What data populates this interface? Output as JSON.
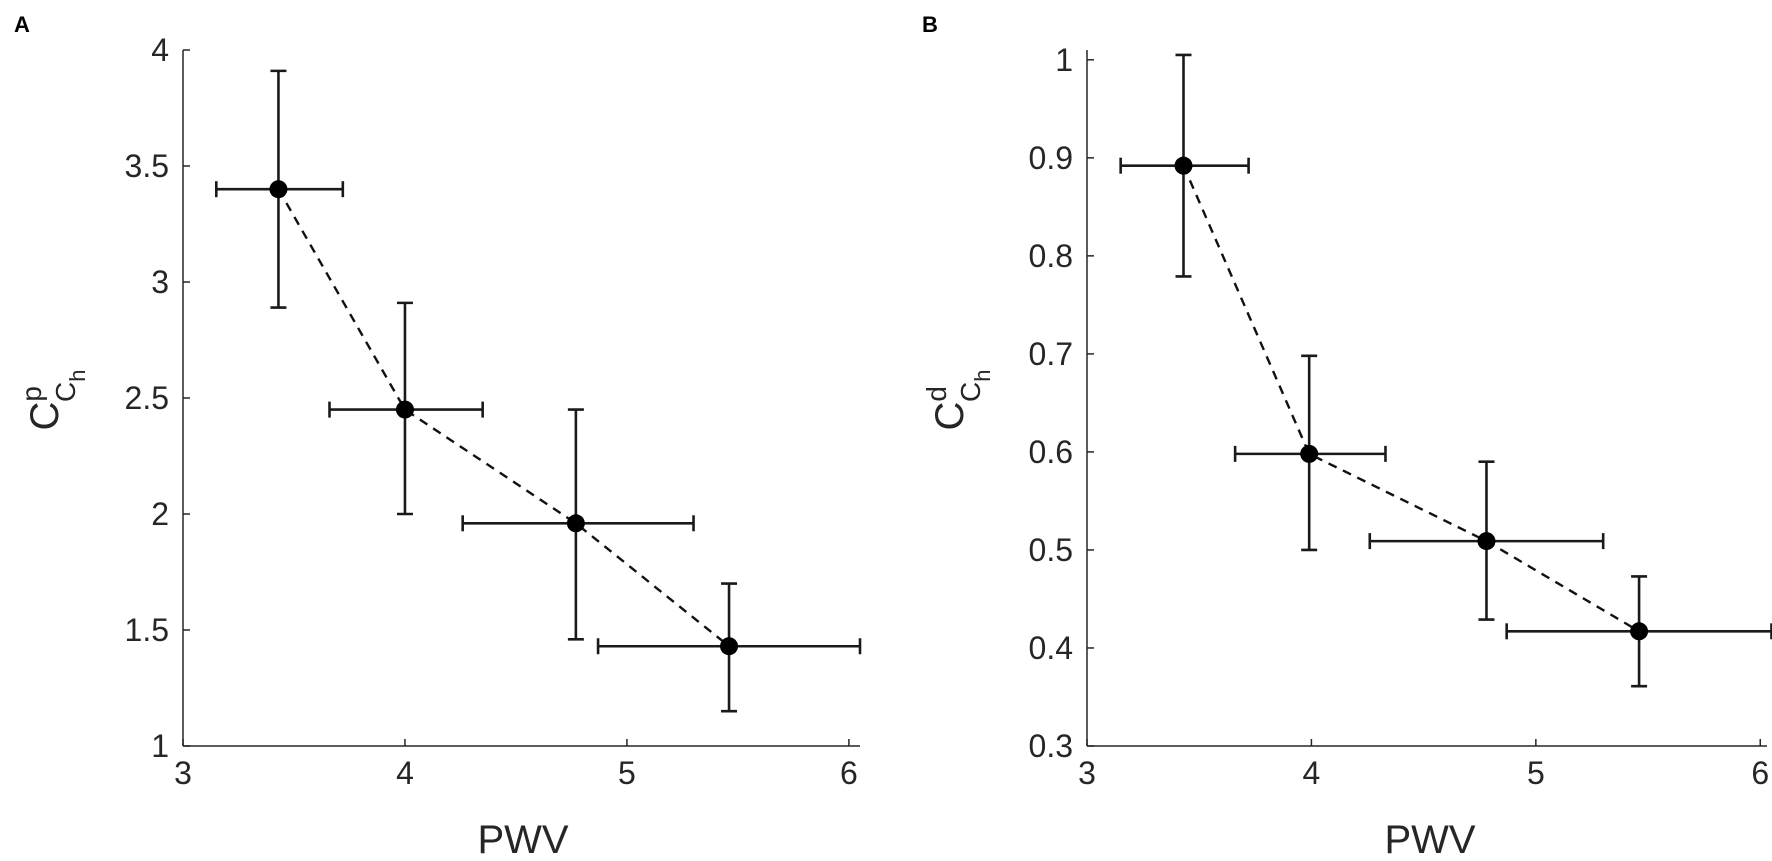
{
  "chart_data": [
    {
      "type": "scatter",
      "panel_label": "A",
      "xlabel": "PWV",
      "ylabel": {
        "base": "C",
        "sup": "p",
        "sub": "C",
        "subsub": "h"
      },
      "xlim": [
        3,
        6.05
      ],
      "ylim": [
        1,
        4
      ],
      "xticks": [
        3,
        4,
        5,
        6
      ],
      "xtick_labels": [
        "3",
        "4",
        "5",
        "6"
      ],
      "yticks": [
        1,
        1.5,
        2,
        2.5,
        3,
        3.5,
        4
      ],
      "ytick_labels": [
        "1",
        "1.5",
        "2",
        "2.5",
        "3",
        "3.5",
        "4"
      ],
      "grid": false,
      "fit_line": "dashed",
      "points": [
        {
          "x": 3.43,
          "y": 3.4,
          "x_err_low": 3.15,
          "x_err_high": 3.72,
          "y_err_low": 2.89,
          "y_err_high": 3.91
        },
        {
          "x": 4.0,
          "y": 2.45,
          "x_err_low": 3.66,
          "x_err_high": 4.35,
          "y_err_low": 2.0,
          "y_err_high": 2.91
        },
        {
          "x": 4.77,
          "y": 1.96,
          "x_err_low": 4.26,
          "x_err_high": 5.3,
          "y_err_low": 1.46,
          "y_err_high": 2.45
        },
        {
          "x": 5.46,
          "y": 1.43,
          "x_err_low": 4.87,
          "x_err_high": 6.05,
          "y_err_low": 1.15,
          "y_err_high": 1.7
        }
      ]
    },
    {
      "type": "scatter",
      "panel_label": "B",
      "xlabel": "PWV",
      "ylabel": {
        "base": "C",
        "sup": "d",
        "sub": "C",
        "subsub": "h"
      },
      "xlim": [
        3,
        6.03
      ],
      "ylim": [
        0.3,
        1.01
      ],
      "xticks": [
        3,
        4,
        5,
        6
      ],
      "xtick_labels": [
        "3",
        "4",
        "5",
        "6"
      ],
      "yticks": [
        0.3,
        0.4,
        0.5,
        0.6,
        0.7,
        0.8,
        0.9,
        1
      ],
      "ytick_labels": [
        "0.3",
        "0.4",
        "0.5",
        "0.6",
        "0.7",
        "0.8",
        "0.9",
        "1"
      ],
      "grid": false,
      "fit_line": "dashed",
      "points": [
        {
          "x": 3.43,
          "y": 0.892,
          "x_err_low": 3.15,
          "x_err_high": 3.72,
          "y_err_low": 0.779,
          "y_err_high": 1.005
        },
        {
          "x": 3.99,
          "y": 0.598,
          "x_err_low": 3.66,
          "x_err_high": 4.33,
          "y_err_low": 0.5,
          "y_err_high": 0.698
        },
        {
          "x": 4.78,
          "y": 0.509,
          "x_err_low": 4.26,
          "x_err_high": 5.3,
          "y_err_low": 0.429,
          "y_err_high": 0.59
        },
        {
          "x": 5.46,
          "y": 0.417,
          "x_err_low": 4.87,
          "x_err_high": 6.05,
          "y_err_low": 0.361,
          "y_err_high": 0.473
        }
      ]
    }
  ]
}
